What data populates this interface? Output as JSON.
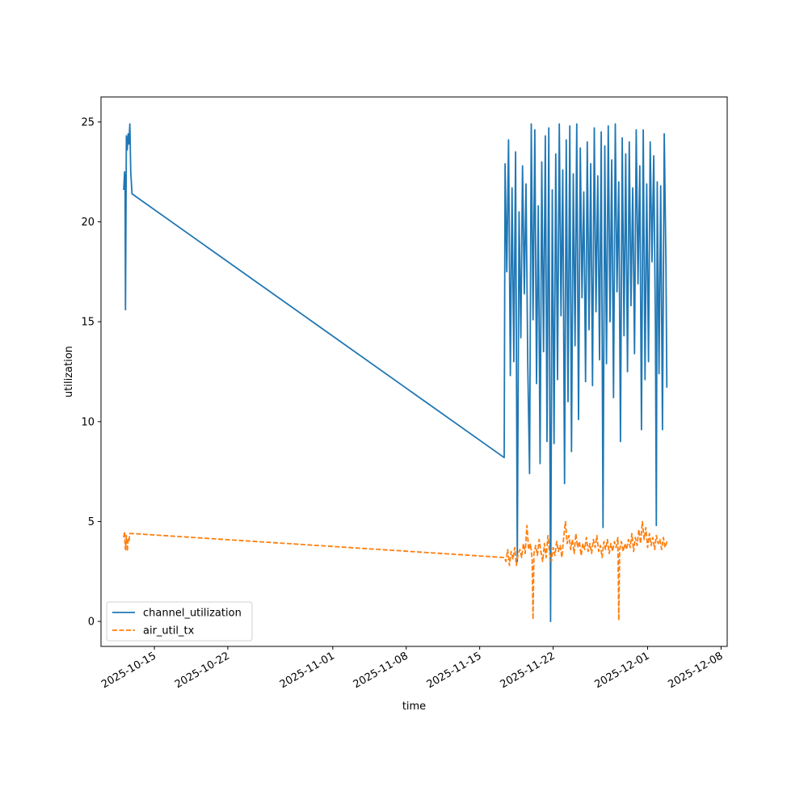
{
  "chart_data": {
    "type": "line",
    "xlabel": "time",
    "ylabel": "utilization",
    "x_type": "date",
    "xlim": [
      "2025-10-09T22:00",
      "2025-12-08T14:00"
    ],
    "ylim": [
      -1.25,
      26.25
    ],
    "y_ticks": [
      0,
      5,
      10,
      15,
      20,
      25
    ],
    "x_ticks": [
      "2025-10-15",
      "2025-10-22",
      "2025-11-01",
      "2025-11-08",
      "2025-11-15",
      "2025-11-22",
      "2025-12-01",
      "2025-12-08"
    ],
    "legend_position": "lower-left",
    "grid": false,
    "series": [
      {
        "name": "channel_utilization",
        "color": "#1f77b4",
        "style": "solid",
        "points": [
          [
            "2025-10-12T02:00",
            21.6
          ],
          [
            "2025-10-12T04:00",
            22.5
          ],
          [
            "2025-10-12T05:00",
            21.8
          ],
          [
            "2025-10-12T06:00",
            15.6
          ],
          [
            "2025-10-12T08:00",
            24.3
          ],
          [
            "2025-10-12T10:00",
            23.6
          ],
          [
            "2025-10-12T12:00",
            24.4
          ],
          [
            "2025-10-12T14:00",
            23.9
          ],
          [
            "2025-10-12T16:00",
            24.9
          ],
          [
            "2025-10-12T18:00",
            22.5
          ],
          [
            "2025-10-12T21:00",
            21.4
          ],
          [
            "2025-11-17T08:00",
            8.2
          ],
          [
            "2025-11-17T10:00",
            22.9
          ],
          [
            "2025-11-17T14:00",
            17.5
          ],
          [
            "2025-11-17T18:00",
            24.1
          ],
          [
            "2025-11-17T22:00",
            12.3
          ],
          [
            "2025-11-18T02:00",
            21.7
          ],
          [
            "2025-11-18T06:00",
            13.0
          ],
          [
            "2025-11-18T10:00",
            23.5
          ],
          [
            "2025-11-18T14:00",
            3.0
          ],
          [
            "2025-11-18T18:00",
            20.5
          ],
          [
            "2025-11-18T22:00",
            14.2
          ],
          [
            "2025-11-19T02:00",
            22.8
          ],
          [
            "2025-11-19T06:00",
            16.4
          ],
          [
            "2025-11-19T10:00",
            21.9
          ],
          [
            "2025-11-19T14:00",
            12.8
          ],
          [
            "2025-11-19T18:00",
            7.4
          ],
          [
            "2025-11-19T22:00",
            24.9
          ],
          [
            "2025-11-20T02:00",
            15.1
          ],
          [
            "2025-11-20T06:00",
            24.6
          ],
          [
            "2025-11-20T10:00",
            11.9
          ],
          [
            "2025-11-20T14:00",
            20.8
          ],
          [
            "2025-11-20T18:00",
            7.9
          ],
          [
            "2025-11-20T22:00",
            23.0
          ],
          [
            "2025-11-21T02:00",
            13.5
          ],
          [
            "2025-11-21T06:00",
            24.3
          ],
          [
            "2025-11-21T10:00",
            9.0
          ],
          [
            "2025-11-21T14:00",
            24.7
          ],
          [
            "2025-11-21T18:00",
            0.0
          ],
          [
            "2025-11-21T22:00",
            21.6
          ],
          [
            "2025-11-22T02:00",
            8.9
          ],
          [
            "2025-11-22T06:00",
            23.4
          ],
          [
            "2025-11-22T10:00",
            12.1
          ],
          [
            "2025-11-22T14:00",
            24.9
          ],
          [
            "2025-11-22T18:00",
            15.3
          ],
          [
            "2025-11-22T22:00",
            22.6
          ],
          [
            "2025-11-23T02:00",
            6.9
          ],
          [
            "2025-11-23T06:00",
            24.1
          ],
          [
            "2025-11-23T10:00",
            11.0
          ],
          [
            "2025-11-23T14:00",
            24.8
          ],
          [
            "2025-11-23T18:00",
            8.5
          ],
          [
            "2025-11-23T22:00",
            22.4
          ],
          [
            "2025-11-24T02:00",
            13.8
          ],
          [
            "2025-11-24T06:00",
            24.9
          ],
          [
            "2025-11-24T10:00",
            10.1
          ],
          [
            "2025-11-24T14:00",
            23.7
          ],
          [
            "2025-11-24T18:00",
            16.2
          ],
          [
            "2025-11-24T22:00",
            21.5
          ],
          [
            "2025-11-25T02:00",
            12.0
          ],
          [
            "2025-11-25T06:00",
            24.0
          ],
          [
            "2025-11-25T10:00",
            14.6
          ],
          [
            "2025-11-25T14:00",
            22.9
          ],
          [
            "2025-11-25T18:00",
            11.8
          ],
          [
            "2025-11-25T22:00",
            24.7
          ],
          [
            "2025-11-26T02:00",
            15.5
          ],
          [
            "2025-11-26T06:00",
            22.3
          ],
          [
            "2025-11-26T10:00",
            13.1
          ],
          [
            "2025-11-26T14:00",
            24.5
          ],
          [
            "2025-11-26T18:00",
            4.7
          ],
          [
            "2025-11-26T22:00",
            23.8
          ],
          [
            "2025-11-27T02:00",
            12.9
          ],
          [
            "2025-11-27T06:00",
            24.8
          ],
          [
            "2025-11-27T10:00",
            15.0
          ],
          [
            "2025-11-27T14:00",
            23.1
          ],
          [
            "2025-11-27T18:00",
            11.2
          ],
          [
            "2025-11-27T22:00",
            24.9
          ],
          [
            "2025-11-28T02:00",
            16.5
          ],
          [
            "2025-11-28T06:00",
            22.0
          ],
          [
            "2025-11-28T10:00",
            9.0
          ],
          [
            "2025-11-28T14:00",
            24.2
          ],
          [
            "2025-11-28T18:00",
            14.3
          ],
          [
            "2025-11-28T22:00",
            23.4
          ],
          [
            "2025-11-29T02:00",
            12.5
          ],
          [
            "2025-11-29T06:00",
            24.0
          ],
          [
            "2025-11-29T10:00",
            15.8
          ],
          [
            "2025-11-29T14:00",
            21.7
          ],
          [
            "2025-11-29T18:00",
            13.4
          ],
          [
            "2025-11-29T22:00",
            24.6
          ],
          [
            "2025-11-30T02:00",
            16.9
          ],
          [
            "2025-11-30T06:00",
            22.8
          ],
          [
            "2025-11-30T10:00",
            9.6
          ],
          [
            "2025-11-30T14:00",
            24.6
          ],
          [
            "2025-11-30T18:00",
            12.1
          ],
          [
            "2025-11-30T22:00",
            21.9
          ],
          [
            "2025-12-01T02:00",
            13.0
          ],
          [
            "2025-12-01T06:00",
            24.0
          ],
          [
            "2025-12-01T10:00",
            18.0
          ],
          [
            "2025-12-01T14:00",
            23.3
          ],
          [
            "2025-12-01T18:00",
            14.5
          ],
          [
            "2025-12-01T20:00",
            4.8
          ],
          [
            "2025-12-01T22:00",
            22.0
          ],
          [
            "2025-12-02T02:00",
            12.4
          ],
          [
            "2025-12-02T06:00",
            21.8
          ],
          [
            "2025-12-02T10:00",
            9.6
          ],
          [
            "2025-12-02T14:00",
            24.4
          ],
          [
            "2025-12-02T18:00",
            17.8
          ],
          [
            "2025-12-02T20:00",
            11.7
          ]
        ]
      },
      {
        "name": "air_util_tx",
        "color": "#ff7f0e",
        "style": "dashed",
        "points": [
          [
            "2025-10-12T02:00",
            4.2
          ],
          [
            "2025-10-12T04:00",
            4.5
          ],
          [
            "2025-10-12T05:00",
            3.8
          ],
          [
            "2025-10-12T06:00",
            3.6
          ],
          [
            "2025-10-12T08:00",
            4.3
          ],
          [
            "2025-10-12T10:00",
            3.5
          ],
          [
            "2025-10-12T12:00",
            4.1
          ],
          [
            "2025-10-12T14:00",
            4.0
          ],
          [
            "2025-10-12T16:00",
            4.4
          ],
          [
            "2025-10-12T21:00",
            4.4
          ],
          [
            "2025-11-17T08:00",
            3.2
          ],
          [
            "2025-11-17T12:00",
            3.0
          ],
          [
            "2025-11-17T16:00",
            3.6
          ],
          [
            "2025-11-17T20:00",
            2.8
          ],
          [
            "2025-11-18T00:00",
            3.5
          ],
          [
            "2025-11-18T04:00",
            3.1
          ],
          [
            "2025-11-18T08:00",
            3.7
          ],
          [
            "2025-11-18T12:00",
            2.8
          ],
          [
            "2025-11-18T16:00",
            3.4
          ],
          [
            "2025-11-18T20:00",
            3.6
          ],
          [
            "2025-11-19T00:00",
            3.2
          ],
          [
            "2025-11-19T04:00",
            3.9
          ],
          [
            "2025-11-19T08:00",
            3.4
          ],
          [
            "2025-11-19T12:00",
            4.8
          ],
          [
            "2025-11-19T16:00",
            3.6
          ],
          [
            "2025-11-19T20:00",
            3.9
          ],
          [
            "2025-11-20T00:00",
            3.1
          ],
          [
            "2025-11-20T02:00",
            0.1
          ],
          [
            "2025-11-20T04:00",
            3.4
          ],
          [
            "2025-11-20T08:00",
            3.8
          ],
          [
            "2025-11-20T12:00",
            3.3
          ],
          [
            "2025-11-20T16:00",
            4.1
          ],
          [
            "2025-11-20T20:00",
            3.5
          ],
          [
            "2025-11-21T00:00",
            3.0
          ],
          [
            "2025-11-21T04:00",
            3.9
          ],
          [
            "2025-11-21T08:00",
            3.2
          ],
          [
            "2025-11-21T12:00",
            4.3
          ],
          [
            "2025-11-21T16:00",
            3.4
          ],
          [
            "2025-11-21T20:00",
            3.0
          ],
          [
            "2025-11-22T00:00",
            3.7
          ],
          [
            "2025-11-22T04:00",
            3.3
          ],
          [
            "2025-11-22T08:00",
            4.0
          ],
          [
            "2025-11-22T12:00",
            3.5
          ],
          [
            "2025-11-22T16:00",
            3.8
          ],
          [
            "2025-11-22T20:00",
            3.2
          ],
          [
            "2025-11-23T00:00",
            4.2
          ],
          [
            "2025-11-23T04:00",
            5.0
          ],
          [
            "2025-11-23T08:00",
            3.9
          ],
          [
            "2025-11-23T12:00",
            4.3
          ],
          [
            "2025-11-23T16:00",
            3.6
          ],
          [
            "2025-11-23T20:00",
            4.1
          ],
          [
            "2025-11-24T00:00",
            3.4
          ],
          [
            "2025-11-24T04:00",
            4.4
          ],
          [
            "2025-11-24T08:00",
            3.7
          ],
          [
            "2025-11-24T12:00",
            4.0
          ],
          [
            "2025-11-24T16:00",
            3.3
          ],
          [
            "2025-11-24T20:00",
            3.9
          ],
          [
            "2025-11-25T00:00",
            3.6
          ],
          [
            "2025-11-25T04:00",
            4.2
          ],
          [
            "2025-11-25T08:00",
            3.5
          ],
          [
            "2025-11-25T12:00",
            3.9
          ],
          [
            "2025-11-25T16:00",
            3.4
          ],
          [
            "2025-11-25T20:00",
            4.1
          ],
          [
            "2025-11-26T00:00",
            3.7
          ],
          [
            "2025-11-26T04:00",
            4.3
          ],
          [
            "2025-11-26T08:00",
            3.5
          ],
          [
            "2025-11-26T12:00",
            3.8
          ],
          [
            "2025-11-26T16:00",
            3.2
          ],
          [
            "2025-11-26T20:00",
            4.0
          ],
          [
            "2025-11-27T00:00",
            3.6
          ],
          [
            "2025-11-27T04:00",
            4.1
          ],
          [
            "2025-11-27T08:00",
            3.4
          ],
          [
            "2025-11-27T12:00",
            3.9
          ],
          [
            "2025-11-27T16:00",
            3.5
          ],
          [
            "2025-11-27T20:00",
            4.0
          ],
          [
            "2025-11-28T00:00",
            3.7
          ],
          [
            "2025-11-28T04:00",
            4.2
          ],
          [
            "2025-11-28T06:00",
            0.05
          ],
          [
            "2025-11-28T08:00",
            3.6
          ],
          [
            "2025-11-28T12:00",
            4.0
          ],
          [
            "2025-11-28T16:00",
            3.5
          ],
          [
            "2025-11-28T20:00",
            3.9
          ],
          [
            "2025-11-29T00:00",
            3.6
          ],
          [
            "2025-11-29T04:00",
            4.1
          ],
          [
            "2025-11-29T08:00",
            3.7
          ],
          [
            "2025-11-29T12:00",
            4.4
          ],
          [
            "2025-11-29T16:00",
            3.5
          ],
          [
            "2025-11-29T20:00",
            4.2
          ],
          [
            "2025-11-30T00:00",
            3.8
          ],
          [
            "2025-11-30T04:00",
            4.6
          ],
          [
            "2025-11-30T08:00",
            3.9
          ],
          [
            "2025-11-30T12:00",
            5.0
          ],
          [
            "2025-11-30T16:00",
            4.1
          ],
          [
            "2025-11-30T20:00",
            4.7
          ],
          [
            "2025-12-01T00:00",
            3.7
          ],
          [
            "2025-12-01T04:00",
            4.4
          ],
          [
            "2025-12-01T08:00",
            3.8
          ],
          [
            "2025-12-01T12:00",
            4.2
          ],
          [
            "2025-12-01T16:00",
            3.6
          ],
          [
            "2025-12-01T20:00",
            4.3
          ],
          [
            "2025-12-02T00:00",
            3.9
          ],
          [
            "2025-12-02T04:00",
            4.1
          ],
          [
            "2025-12-02T08:00",
            3.6
          ],
          [
            "2025-12-02T12:00",
            4.2
          ],
          [
            "2025-12-02T16:00",
            3.7
          ],
          [
            "2025-12-02T20:00",
            4.0
          ]
        ]
      }
    ]
  }
}
